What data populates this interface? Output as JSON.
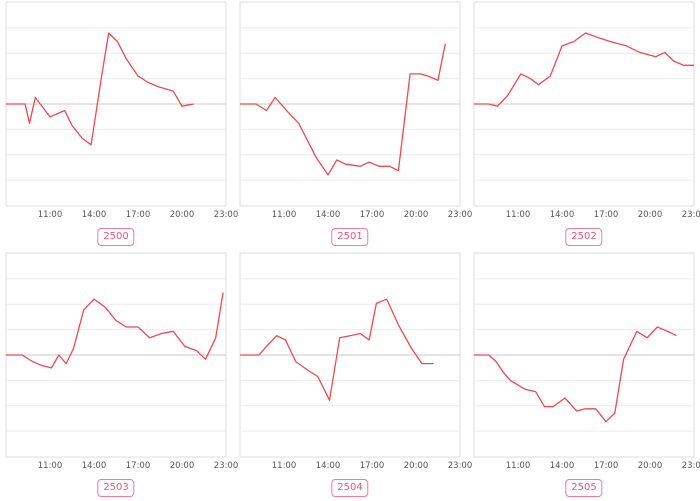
{
  "colors": {
    "line": "#f0484e",
    "baseline": "#c9c9c9",
    "grid": "#ececec",
    "frame": "#dedede",
    "button": "#e8577f",
    "tick": "#555555"
  },
  "x_ticks": [
    "11:00",
    "14:00",
    "17:00",
    "20:00",
    "23:00"
  ],
  "chart_data": [
    {
      "type": "line",
      "button_label": "2500",
      "x_range": [
        8,
        23
      ],
      "x": [
        8,
        9.3,
        9.6,
        10,
        11,
        12,
        12.5,
        13.2,
        13.8,
        14.5,
        15,
        15.6,
        16.2,
        17,
        17.7,
        18.4,
        19.4,
        20,
        20.8
      ],
      "y": [
        0,
        0,
        -0.9,
        0.3,
        -0.6,
        -0.3,
        -1.0,
        -1.6,
        -1.9,
        1.2,
        3.3,
        2.9,
        2.1,
        1.3,
        1.0,
        0.8,
        0.6,
        -0.1,
        0
      ]
    },
    {
      "type": "line",
      "button_label": "2501",
      "x_range": [
        8,
        23
      ],
      "x": [
        8,
        9.1,
        9.8,
        10.4,
        11.3,
        12,
        12.6,
        13.2,
        14,
        14.6,
        15.2,
        16.2,
        16.8,
        17.5,
        18.2,
        18.8,
        19.6,
        20.3,
        20.8,
        21.5,
        22
      ],
      "y": [
        0,
        0,
        -0.3,
        0.3,
        -0.4,
        -0.9,
        -1.7,
        -2.5,
        -3.3,
        -2.6,
        -2.8,
        -2.9,
        -2.7,
        -2.9,
        -2.9,
        -3.1,
        1.4,
        1.4,
        1.3,
        1.1,
        2.8
      ]
    },
    {
      "type": "line",
      "button_label": "2502",
      "x_range": [
        8,
        23
      ],
      "x": [
        8,
        9,
        9.6,
        10.3,
        11.2,
        11.8,
        12.4,
        13.2,
        14,
        14.8,
        15.6,
        16.4,
        17.3,
        18.4,
        19.3,
        20.4,
        21,
        21.6,
        22.3,
        23
      ],
      "y": [
        0,
        0,
        -0.1,
        0.4,
        1.4,
        1.2,
        0.9,
        1.3,
        2.7,
        2.9,
        3.3,
        3.1,
        2.9,
        2.7,
        2.4,
        2.2,
        2.4,
        2.0,
        1.8,
        1.8
      ]
    },
    {
      "type": "line",
      "button_label": "2503",
      "x_range": [
        8,
        23
      ],
      "x": [
        8,
        9.1,
        9.8,
        10.5,
        11.1,
        11.6,
        12.1,
        12.6,
        13.3,
        14,
        14.8,
        15.5,
        16.2,
        17,
        17.8,
        18.6,
        19.4,
        20.2,
        21,
        21.6,
        22.3,
        22.8
      ],
      "y": [
        0,
        0,
        -0.3,
        -0.5,
        -0.6,
        0,
        -0.4,
        0.3,
        2.1,
        2.6,
        2.2,
        1.6,
        1.3,
        1.3,
        0.8,
        1.0,
        1.1,
        0.4,
        0.2,
        -0.2,
        0.8,
        2.9
      ]
    },
    {
      "type": "line",
      "button_label": "2504",
      "x_range": [
        8,
        23
      ],
      "x": [
        8,
        9.3,
        9.8,
        10.5,
        11.1,
        11.8,
        12.6,
        13.3,
        14.1,
        14.8,
        15.5,
        16.2,
        16.8,
        17.3,
        18,
        18.8,
        19.7,
        20.4,
        21.2
      ],
      "y": [
        0,
        0,
        0.4,
        0.9,
        0.7,
        -0.3,
        -0.7,
        -1.0,
        -2.1,
        0.8,
        0.9,
        1.0,
        0.7,
        2.4,
        2.6,
        1.4,
        0.3,
        -0.4,
        -0.4
      ]
    },
    {
      "type": "line",
      "button_label": "2505",
      "x_range": [
        8,
        23
      ],
      "x": [
        8,
        9,
        9.5,
        10,
        10.5,
        11,
        11.5,
        12.2,
        12.8,
        13.4,
        14.2,
        15,
        15.6,
        16.3,
        17,
        17.6,
        18.2,
        19.1,
        19.8,
        20.5,
        21.2,
        21.8
      ],
      "y": [
        0,
        0,
        -0.3,
        -0.8,
        -1.2,
        -1.4,
        -1.6,
        -1.7,
        -2.4,
        -2.4,
        -2.0,
        -2.6,
        -2.5,
        -2.5,
        -3.1,
        -2.7,
        -0.2,
        1.1,
        0.8,
        1.3,
        1.1,
        0.9
      ]
    }
  ]
}
